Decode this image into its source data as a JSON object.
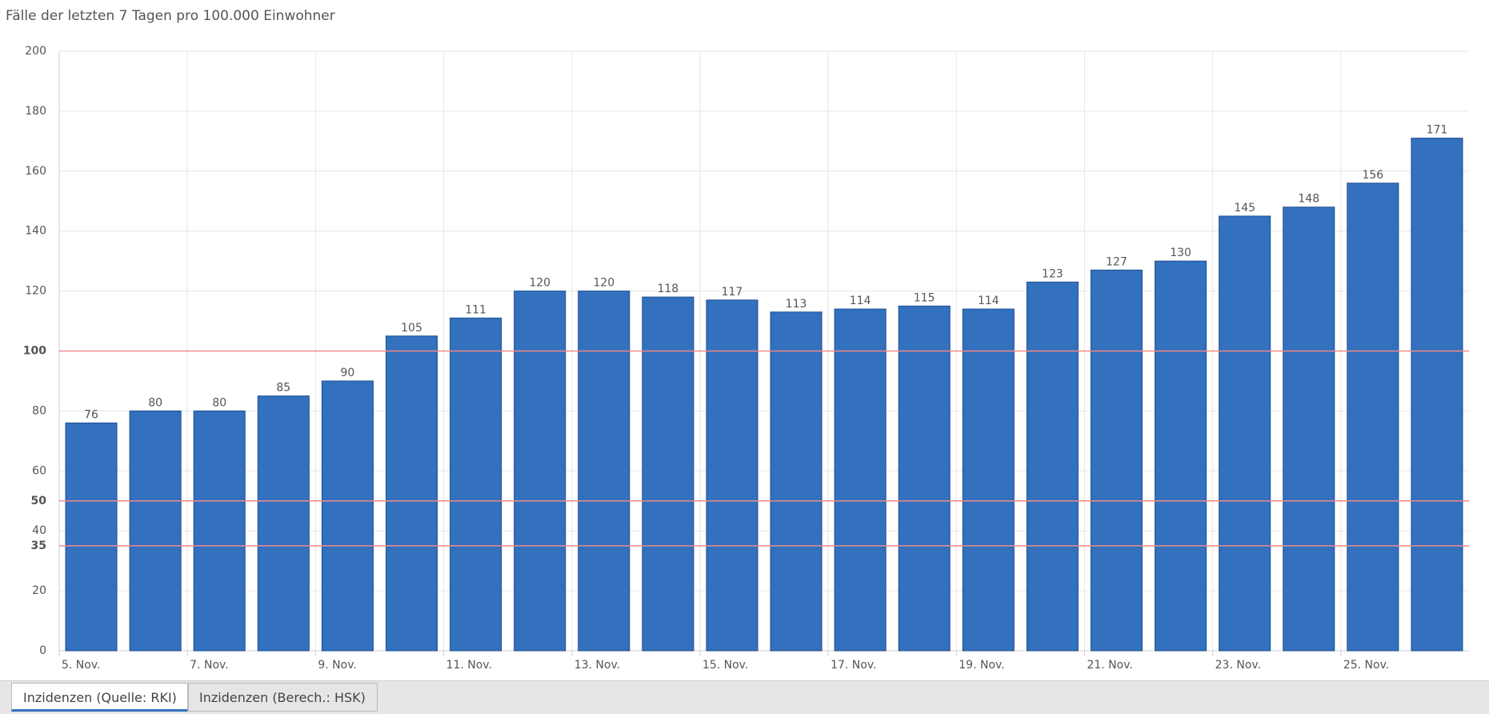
{
  "chart_data": {
    "type": "bar",
    "title": "Fälle der letzten 7 Tagen pro 100.000 Einwohner",
    "categories": [
      "5. Nov.",
      null,
      "7. Nov.",
      null,
      "9. Nov.",
      null,
      "11. Nov.",
      null,
      "13. Nov.",
      null,
      "15. Nov.",
      null,
      "17. Nov.",
      null,
      "19. Nov.",
      null,
      "21. Nov.",
      null,
      "23. Nov.",
      null,
      "25. Nov.",
      null
    ],
    "values": [
      76,
      80,
      80,
      85,
      90,
      105,
      111,
      120,
      120,
      118,
      117,
      113,
      114,
      115,
      114,
      123,
      127,
      130,
      145,
      148,
      156,
      171
    ],
    "color": "#3370bd",
    "ylim": [
      0,
      200
    ],
    "yticks": [
      0,
      20,
      40,
      60,
      80,
      120,
      140,
      160,
      180,
      200
    ],
    "threshold_lines": [
      35,
      50,
      100
    ],
    "threshold_color": "#ee8a8a",
    "grid": true
  },
  "tabs": [
    "Inzidenzen (Quelle: RKI)",
    "Inzidenzen (Berech.: HSK)"
  ]
}
